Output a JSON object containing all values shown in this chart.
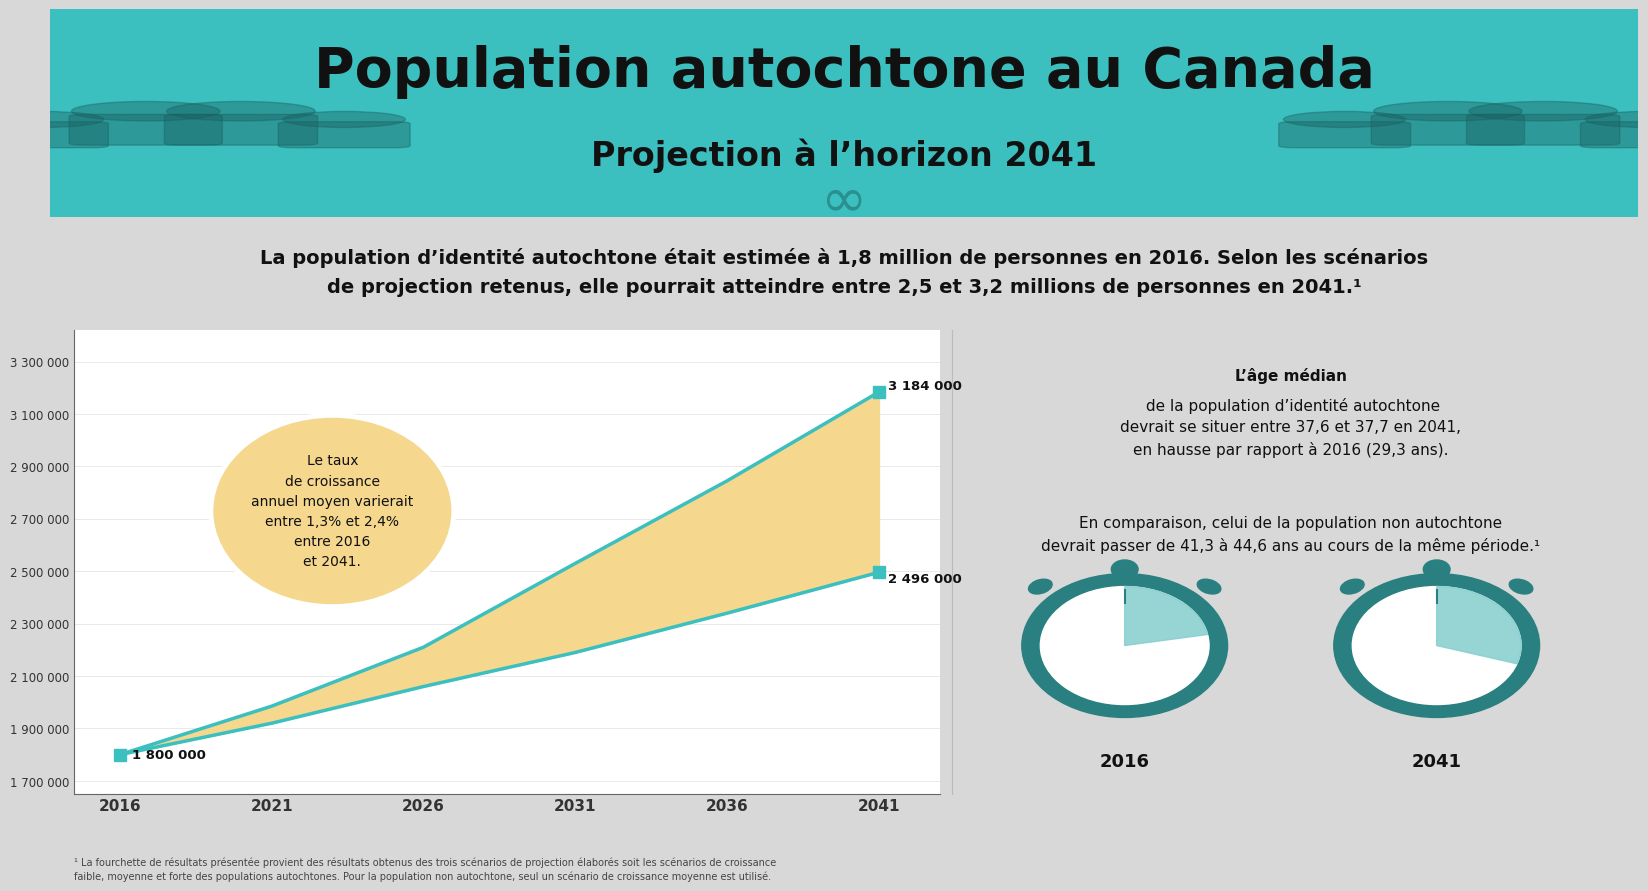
{
  "header_bg": "#3bbfbf",
  "header_title": "Population autochtone au Canada",
  "header_subtitle": "Projection à l’horizon 2041",
  "summary_bg": "#e0e0e0",
  "summary_text_line1": "La population d’identité autochtone était estimée à 1,8 million de personnes en 2016. Selon les scénarios",
  "summary_text_line2": "de projection retenus, elle pourrait atteindre entre 2,5 et 3,2 millions de personnes en 2041.¹",
  "years": [
    2016,
    2021,
    2026,
    2031,
    2036,
    2041
  ],
  "low_values": [
    1800000,
    1920000,
    2060000,
    2190000,
    2340000,
    2496000
  ],
  "high_values": [
    1800000,
    1985000,
    2210000,
    2530000,
    2845000,
    3184000
  ],
  "fill_color": "#f5d78e",
  "line_color": "#3bbfbf",
  "line_width": 2.5,
  "marker_size": 8,
  "ylim_low": 1650000,
  "ylim_high": 3420000,
  "yticks": [
    1700000,
    1900000,
    2100000,
    2300000,
    2500000,
    2700000,
    2900000,
    3100000,
    3300000
  ],
  "ytick_labels": [
    "1 700 000",
    "1 900 000",
    "2 100 000",
    "2 300 000",
    "2 500 000",
    "2 700 000",
    "2 900 000",
    "3 100 000",
    "3 300 000"
  ],
  "annotation_2016": "1 800 000",
  "annotation_high": "3 184 000",
  "annotation_low": "2 496 000",
  "bubble_text": "Le taux\nde croissance\nannuel moyen varierait\nentre 1,3% et 2,4%\nentre 2016\net 2041.",
  "bubble_color": "#f5d78e",
  "bubble_edge": "#ffffff",
  "right_text1_bold": "L’âge médian",
  "right_text1_rest": " de la population d’identité autochtone\ndevrait se situer entre 37,6 et 37,7 en 2041,\nen hausse par rapport à 2016 (29,3 ans).",
  "right_text2": "En comparaison, celui de la population non autochtone\ndevrait passer de 41,3 à 44,6 ans au cours de la même période.¹",
  "clock1_label": "29,3 ans",
  "clock2_label": "~37,6 –\n37,7 ans",
  "clock_year1": "2016",
  "clock_year2": "2041",
  "teal_dark": "#2a8080",
  "teal_mid": "#3bbfbf",
  "teal_pale": "#85cece",
  "teal_very_pale": "#b0dede",
  "footnote": "¹ La fourchette de résultats présentée provient des résultats obtenus des trois scénarios de projection élaborés soit les scénarios de croissance\nfaible, moyenne et forte des populations autochtones. Pour la population non autochtone, seul un scénario de croissance moyenne est utilisé."
}
